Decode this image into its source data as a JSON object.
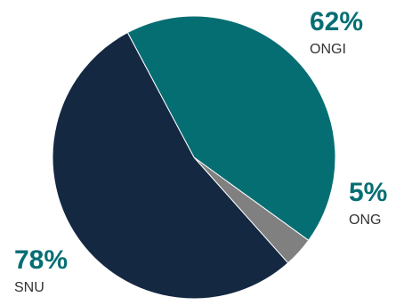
{
  "chart_data": {
    "type": "pie",
    "title": "",
    "slices": [
      {
        "label": "ONGI",
        "display": "62%",
        "value": 62,
        "color": "#056e73"
      },
      {
        "label": "ONG",
        "display": "5%",
        "value": 5,
        "color": "#808080"
      },
      {
        "label": "SNU",
        "display": "78%",
        "value": 78,
        "color": "#142842"
      }
    ],
    "start_angle_deg": -118,
    "stroke_color": "#ffffff",
    "legend": "none"
  }
}
